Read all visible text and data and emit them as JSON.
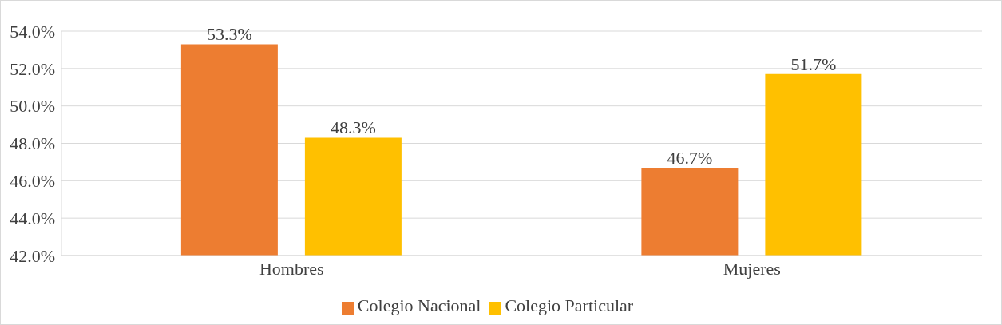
{
  "chart_data": {
    "type": "bar",
    "categories": [
      "Hombres",
      "Mujeres"
    ],
    "series": [
      {
        "name": "Colegio Nacional",
        "color": "#ed7d31",
        "values": [
          53.3,
          46.7
        ],
        "value_labels": [
          "53.3%",
          "46.7%"
        ]
      },
      {
        "name": "Colegio Particular",
        "color": "#ffc000",
        "values": [
          48.3,
          51.7
        ],
        "value_labels": [
          "48.3%",
          "51.7%"
        ]
      }
    ],
    "ylim": [
      42,
      54
    ],
    "yticks": [
      {
        "value": 42,
        "label": "42.0%"
      },
      {
        "value": 44,
        "label": "44.0%"
      },
      {
        "value": 46,
        "label": "46.0%"
      },
      {
        "value": 48,
        "label": "48.0%"
      },
      {
        "value": 50,
        "label": "50.0%"
      },
      {
        "value": 52,
        "label": "52.0%"
      },
      {
        "value": 54,
        "label": "54.0%"
      }
    ],
    "grid": "y",
    "legend": "bottom"
  }
}
